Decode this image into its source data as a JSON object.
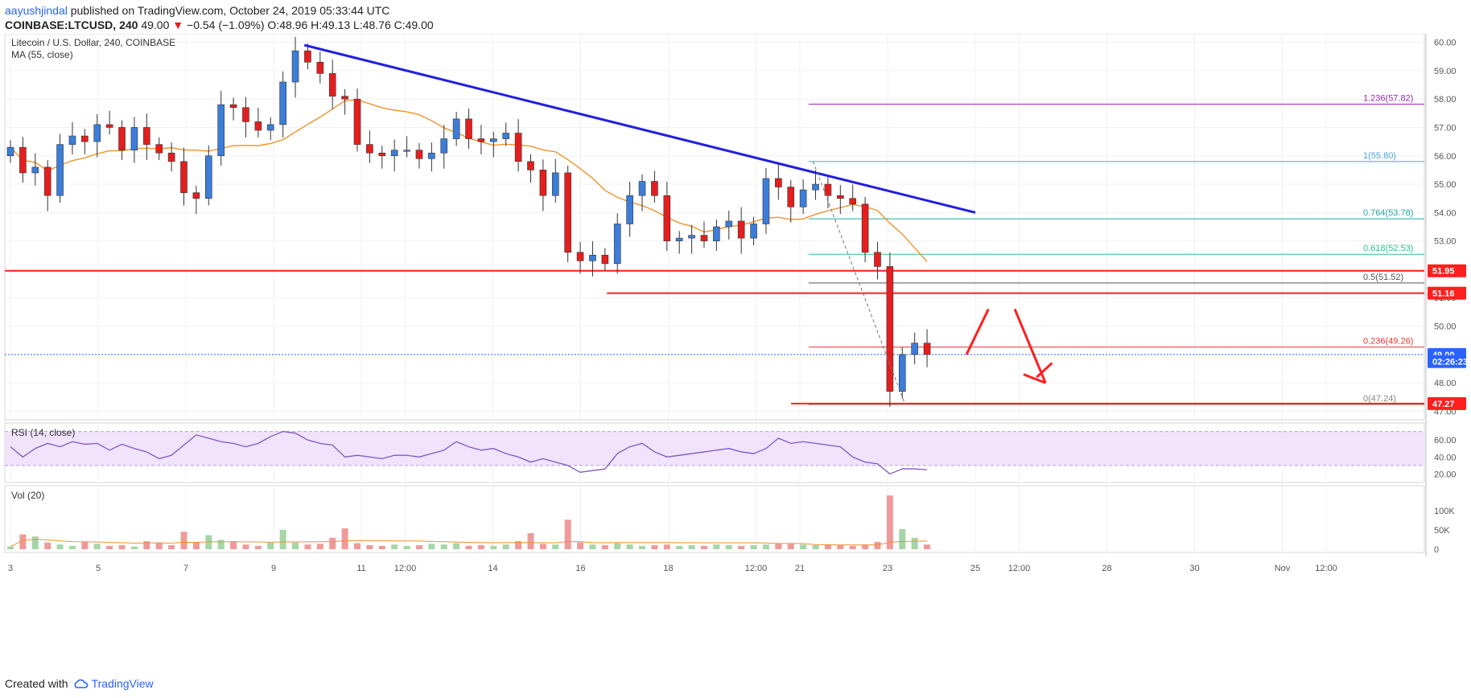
{
  "header": {
    "author": "aayushjindal",
    "published": " published on TradingView.com, October 24, 2019 05:33:44 UTC",
    "symbol": "COINBASE:LTCUSD, 240",
    "last": " 49.00 ",
    "down_arrow": "▼",
    "change": " −0.54 (−1.09%) ",
    "ohlc": "O:48.96 H:49.13 L:48.76 C:49.00"
  },
  "panes": {
    "main_title": "Litecoin / U.S. Dollar, 240, COINBASE",
    "ma_label": "MA (55, close)",
    "rsi_label": "RSI (14, close)",
    "vol_label": "Vol (20)"
  },
  "footer": {
    "created_with": "Created with",
    "brand": "TradingView"
  },
  "colors": {
    "up": "#26a69a",
    "down": "#ef5350",
    "candle_up_fill": "#3c7dd9",
    "candle_down_fill": "#e41e1e",
    "ma": "#f0932b",
    "trendline": "#1f1fe0",
    "support": "#ff1f1f",
    "rsi_line": "#7e57c2",
    "rsi_band": "#f1e3fb"
  },
  "chart_data": [
    {
      "type": "candlestick",
      "title": "Litecoin / U.S. Dollar, 240, COINBASE",
      "y_ticks": [
        47.0,
        48.0,
        50.0,
        51.0,
        52.0,
        53.0,
        54.0,
        55.0,
        56.0,
        57.0,
        58.0,
        59.0,
        60.0
      ],
      "ylim": [
        46.7,
        60.3
      ],
      "x_ticks": [
        "3",
        "5",
        "7",
        "9",
        "11",
        "12:00",
        "14",
        "16",
        "18",
        "12:00",
        "21",
        "23",
        "25",
        "12:00",
        "28",
        "30",
        "Nov",
        "12:00"
      ],
      "price_labels": [
        {
          "value": 51.95,
          "text": "51.95",
          "color": "#ff1f1f"
        },
        {
          "value": 51.16,
          "text": "51.16",
          "color": "#ff1f1f"
        },
        {
          "value": 49.0,
          "text": "49.00",
          "color": "#2962ff"
        },
        {
          "value": 48.75,
          "text": "02:26:23",
          "color": "#2962ff"
        },
        {
          "value": 47.27,
          "text": "47.27",
          "color": "#ff1f1f"
        }
      ],
      "fibonacci": [
        {
          "text": "1.236(57.82)",
          "value": 57.82,
          "color": "#9c27b0"
        },
        {
          "text": "1(55.80)",
          "value": 55.8,
          "color": "#4aa3df"
        },
        {
          "text": "0.764(53.78)",
          "value": 53.78,
          "color": "#26a6a6"
        },
        {
          "text": "0.618(52.53)",
          "value": 52.53,
          "color": "#26c68a"
        },
        {
          "text": "0.5(51.52)",
          "value": 51.52,
          "color": "#555555"
        },
        {
          "text": "0.236(49.26)",
          "value": 49.26,
          "color": "#e53935"
        },
        {
          "text": "0(47.24)",
          "value": 47.24,
          "color": "#888888"
        }
      ],
      "trendline": {
        "from": [
          9.7,
          59.9
        ],
        "to": [
          25.0,
          54.0
        ]
      },
      "support_lines": [
        51.95,
        51.16,
        47.27
      ],
      "ma_period": 55,
      "candles_close": [
        56.3,
        55.4,
        55.6,
        54.6,
        56.4,
        56.7,
        56.5,
        57.1,
        57.0,
        56.2,
        57.0,
        56.4,
        56.1,
        55.8,
        54.7,
        54.5,
        56.0,
        57.8,
        57.7,
        57.2,
        56.9,
        57.1,
        58.6,
        59.7,
        59.3,
        58.9,
        58.1,
        58.0,
        56.4,
        56.1,
        56.0,
        56.2,
        56.2,
        55.9,
        56.1,
        56.6,
        57.3,
        56.6,
        56.5,
        56.6,
        56.8,
        55.8,
        55.5,
        54.6,
        55.4,
        52.6,
        52.3,
        52.5,
        52.2,
        53.6,
        54.6,
        55.1,
        54.6,
        53.0,
        53.1,
        53.2,
        53.0,
        53.5,
        53.7,
        53.1,
        53.6,
        55.2,
        54.9,
        54.2,
        54.8,
        55.0,
        54.6,
        54.5,
        54.3,
        52.6,
        52.1,
        47.7,
        49.0,
        49.4,
        49.0
      ],
      "volume_levels": [
        8,
        44,
        38,
        20,
        14,
        10,
        22,
        16,
        10,
        12,
        8,
        24,
        18,
        12,
        52,
        20,
        42,
        28,
        24,
        14,
        10,
        20,
        58,
        20,
        14,
        16,
        34,
        62,
        18,
        12,
        10,
        14,
        10,
        12,
        16,
        14,
        18,
        10,
        12,
        10,
        14,
        24,
        48,
        16,
        14,
        88,
        20,
        14,
        12,
        18,
        14,
        10,
        12,
        14,
        10,
        12,
        10,
        14,
        12,
        10,
        12,
        14,
        18,
        16,
        14,
        12,
        14,
        12,
        10,
        14,
        22,
        160,
        60,
        34,
        14
      ],
      "volume_ticks": [
        "100K",
        "50K",
        "0"
      ],
      "rsi_ticks": [
        "60.00",
        "40.00",
        "20.00"
      ],
      "rsi_values": [
        52,
        40,
        50,
        56,
        52,
        58,
        55,
        56,
        48,
        55,
        50,
        46,
        38,
        42,
        54,
        66,
        62,
        58,
        56,
        52,
        56,
        64,
        70,
        68,
        60,
        56,
        54,
        40,
        42,
        40,
        38,
        42,
        42,
        40,
        44,
        48,
        58,
        52,
        48,
        50,
        44,
        40,
        34,
        38,
        34,
        30,
        22,
        24,
        26,
        44,
        52,
        56,
        46,
        40,
        42,
        44,
        46,
        48,
        50,
        46,
        44,
        50,
        62,
        56,
        58,
        56,
        54,
        52,
        40,
        34,
        32,
        20,
        26,
        26,
        25
      ]
    }
  ]
}
